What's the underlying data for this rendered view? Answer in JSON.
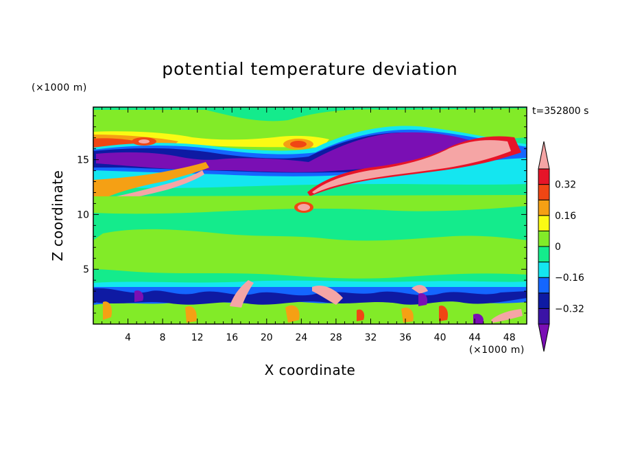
{
  "chart_data": {
    "type": "heatmap",
    "title": "potential temperature deviation",
    "xlabel": "X coordinate",
    "ylabel": "Z coordinate",
    "x_unit": "(×1000 m)",
    "y_unit": "(×1000 m)",
    "time_label": "t=352800 s",
    "xlim": [
      0,
      50
    ],
    "ylim": [
      0,
      19.8
    ],
    "x_ticks": [
      "4",
      "8",
      "12",
      "16",
      "20",
      "24",
      "28",
      "32",
      "36",
      "40",
      "44",
      "48"
    ],
    "y_ticks": [
      "5",
      "10",
      "15"
    ],
    "colorbar": {
      "levels": [
        -0.4,
        -0.32,
        -0.24,
        -0.16,
        -0.08,
        0,
        0.08,
        0.16,
        0.24,
        0.32,
        0.4
      ],
      "labels": [
        "0.32",
        "0.16",
        "0",
        "-0.16",
        "-0.32"
      ],
      "label_values": [
        0.32,
        0.16,
        0,
        -0.16,
        -0.32
      ],
      "colors": [
        "#7a0fb4",
        "#3b13a6",
        "#0e1aa3",
        "#1466ff",
        "#14e6f0",
        "#14eb8c",
        "#82eb28",
        "#fafa14",
        "#f5a014",
        "#f04614",
        "#e61428",
        "#f5a5a5"
      ]
    },
    "background_color": "#14eb8c"
  }
}
